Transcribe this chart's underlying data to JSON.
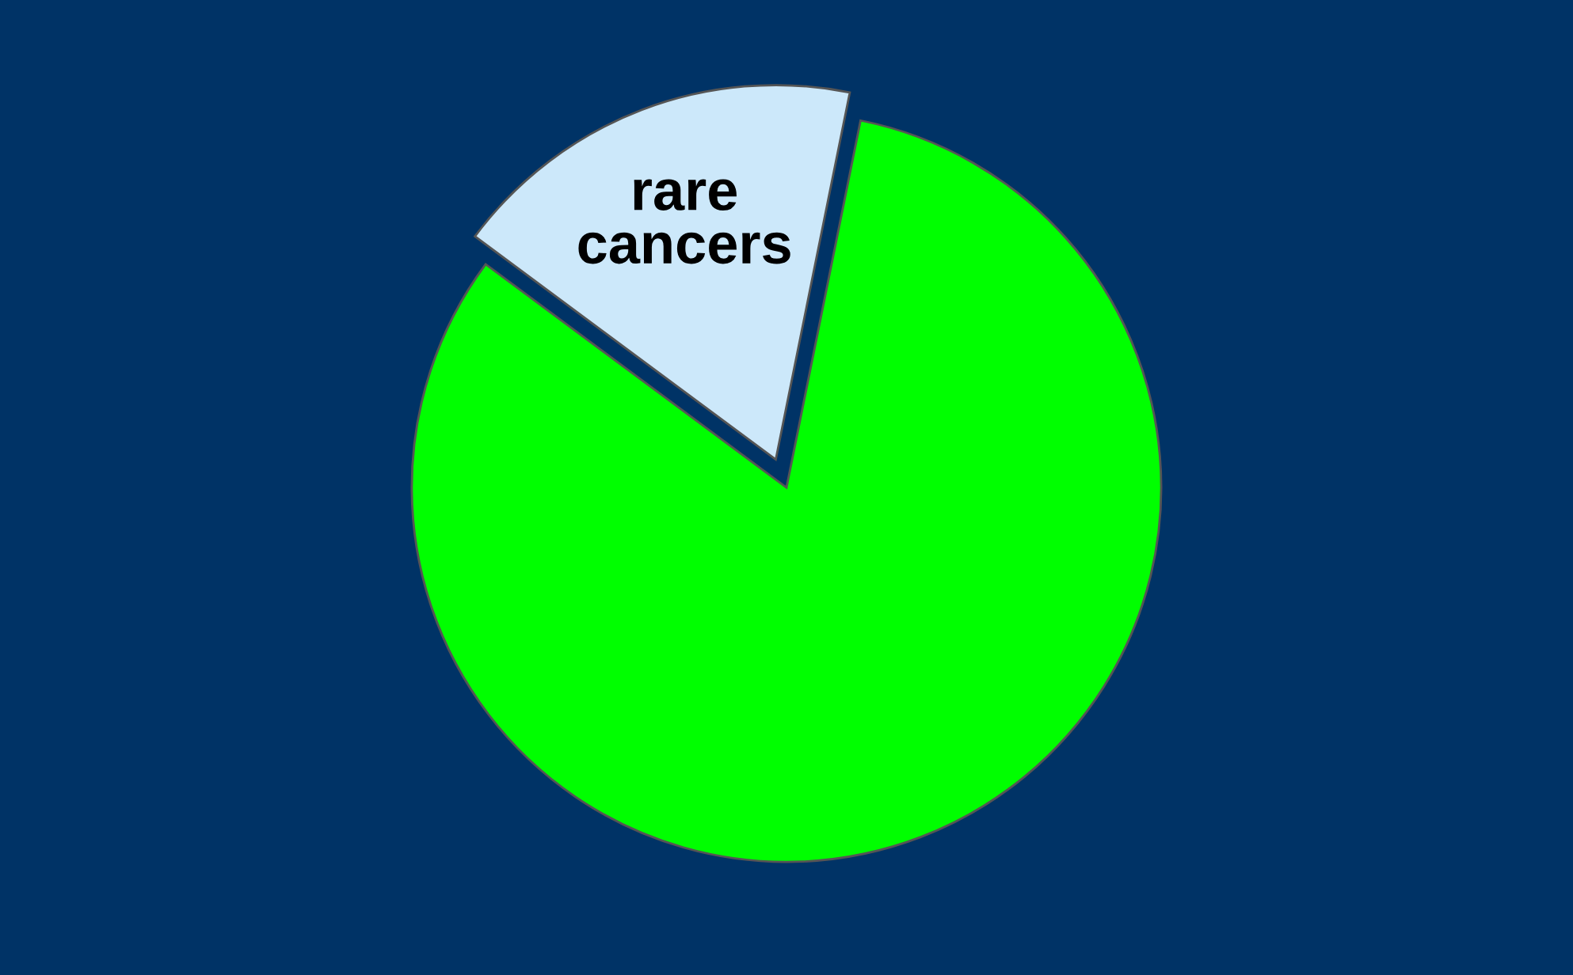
{
  "chart_data": {
    "type": "pie",
    "categories": [
      "rare\ncancers",
      null
    ],
    "values": [
      18,
      82
    ],
    "colors": [
      "#cce8fa",
      "#00ff00"
    ],
    "legend": false
  }
}
